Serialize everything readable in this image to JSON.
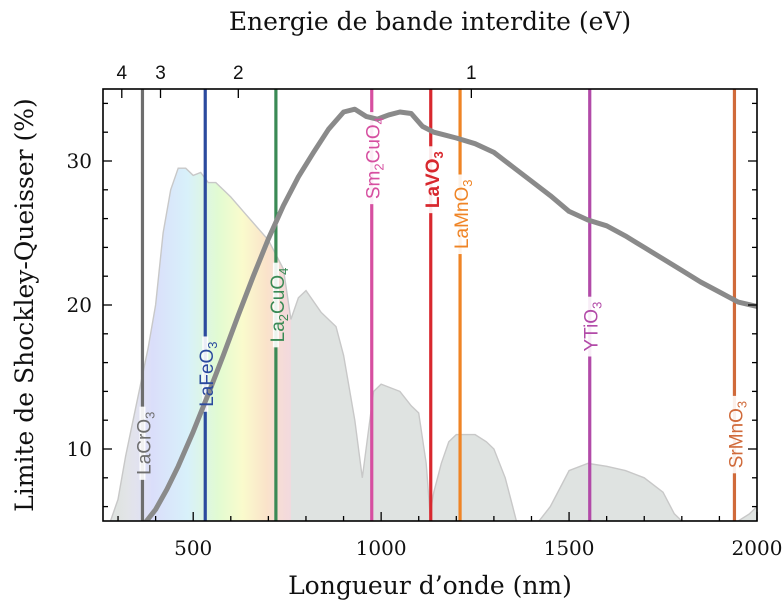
{
  "chart_data": {
    "type": "line",
    "title_top": "Energie de bande interdite (eV)",
    "xlabel": "Longueur d’onde (nm)",
    "ylabel": "Limite de Shockley-Queisser (%)",
    "xlim": [
      260,
      2000
    ],
    "ylim": [
      5,
      35
    ],
    "x_ticks": [
      500,
      1000,
      1500,
      2000
    ],
    "y_ticks": [
      10,
      20,
      30
    ],
    "top_ticks": [
      {
        "label": "4",
        "wavelength_nm": 310
      },
      {
        "label": "3",
        "wavelength_nm": 413
      },
      {
        "label": "2",
        "wavelength_nm": 620
      },
      {
        "label": "1",
        "wavelength_nm": 1240
      }
    ],
    "colors": {
      "sq_curve": "#8a8a8a",
      "spectrum_fill": "#dfe3e1",
      "spectrum_line": "#c8c8c8"
    },
    "series": [
      {
        "x": [
          370,
          400,
          430,
          460,
          500,
          540,
          580,
          620,
          660,
          700,
          740,
          780,
          820,
          860,
          900,
          930,
          960,
          990,
          1020,
          1050,
          1080,
          1110,
          1140,
          1170,
          1200,
          1250,
          1300,
          1350,
          1400,
          1450,
          1500,
          1550,
          1600,
          1650,
          1700,
          1750,
          1800,
          1850,
          1900,
          1950,
          2000
        ],
        "values": [
          4.8,
          5.8,
          7.2,
          8.8,
          11.2,
          13.8,
          16.5,
          19.3,
          22.0,
          24.6,
          26.9,
          28.9,
          30.6,
          32.2,
          33.4,
          33.6,
          33.1,
          32.9,
          33.2,
          33.4,
          33.3,
          32.4,
          32.0,
          31.8,
          31.6,
          31.2,
          30.6,
          29.6,
          28.6,
          27.6,
          26.5,
          25.9,
          25.5,
          24.8,
          24.0,
          23.2,
          22.4,
          21.6,
          20.9,
          20.2,
          19.9
        ]
      }
    ],
    "spectrum": {
      "x": [
        280,
        300,
        320,
        340,
        360,
        380,
        400,
        420,
        440,
        460,
        480,
        500,
        520,
        540,
        560,
        580,
        600,
        640,
        680,
        700,
        740,
        760,
        780,
        800,
        840,
        880,
        900,
        930,
        950,
        980,
        1000,
        1050,
        1080,
        1100,
        1120,
        1130,
        1140,
        1160,
        1180,
        1200,
        1250,
        1280,
        1300,
        1330,
        1350,
        1360,
        1380,
        1420,
        1450,
        1480,
        1500,
        1550,
        1600,
        1650,
        1700,
        1750,
        1780,
        1800,
        1820,
        1900,
        1950,
        1980,
        2000
      ],
      "values": [
        5,
        6.5,
        9.5,
        12,
        14.5,
        17,
        20,
        25,
        28,
        29.5,
        29.5,
        29,
        29.2,
        28.5,
        28.5,
        28,
        27.5,
        26.3,
        25.1,
        24.5,
        22.5,
        19,
        20.5,
        21,
        19.5,
        18.5,
        16.5,
        12,
        8,
        14,
        14.5,
        14,
        13,
        12.5,
        9,
        5.5,
        7,
        9,
        10.5,
        11,
        11,
        10.5,
        10,
        8,
        6,
        5,
        5,
        5,
        6,
        7.5,
        8.5,
        9,
        8.8,
        8.5,
        8,
        7,
        5.5,
        5,
        5,
        5,
        5,
        5.5,
        6
      ]
    },
    "materials": [
      {
        "label_base": "LaCrO",
        "sub": "3",
        "pre_sub": "",
        "wavelength_nm": 365,
        "color": "#6e6e6e",
        "bold": false
      },
      {
        "label_base": "LaFeO",
        "sub": "3",
        "pre_sub": "",
        "wavelength_nm": 532,
        "color": "#2b4a9e",
        "bold": false
      },
      {
        "label_base": "CuO",
        "sub": "4",
        "pre_sub": "La|2",
        "wavelength_nm": 720,
        "color": "#3a8a55",
        "bold": false
      },
      {
        "label_base": "CuO",
        "sub": "4",
        "pre_sub": "Sm|2",
        "wavelength_nm": 975,
        "color": "#d64fa0",
        "bold": false
      },
      {
        "label_base": "LaVO",
        "sub": "3",
        "pre_sub": "",
        "wavelength_nm": 1132,
        "color": "#d8282e",
        "bold": true
      },
      {
        "label_base": "LaMnO",
        "sub": "3",
        "pre_sub": "",
        "wavelength_nm": 1210,
        "color": "#ef8425",
        "bold": false
      },
      {
        "label_base": "YTiO",
        "sub": "3",
        "pre_sub": "",
        "wavelength_nm": 1555,
        "color": "#b24aa8",
        "bold": false
      },
      {
        "label_base": "SrMnO",
        "sub": "3",
        "pre_sub": "",
        "wavelength_nm": 1940,
        "color": "#d06a3a",
        "bold": false
      }
    ]
  }
}
